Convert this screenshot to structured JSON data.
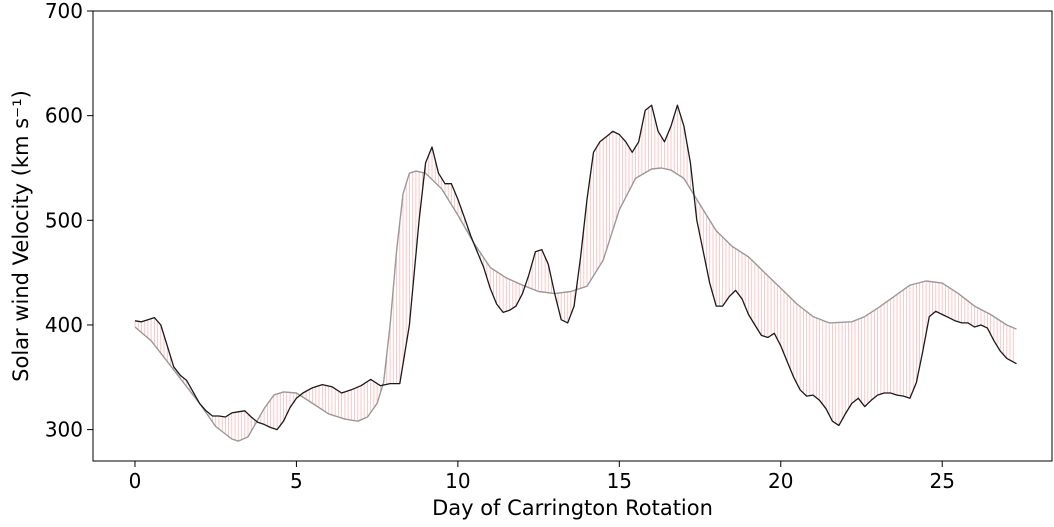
{
  "chart_data": {
    "type": "line",
    "title": "",
    "xlabel": "Day of Carrington Rotation",
    "ylabel": "Solar wind Velocity (km s⁻¹)",
    "xlim": [
      -1.3,
      28.4
    ],
    "ylim": [
      270,
      700
    ],
    "xticks": [
      0,
      5,
      10,
      15,
      20,
      25
    ],
    "yticks": [
      300,
      400,
      500,
      600,
      700
    ],
    "grid": false,
    "colors": {
      "observed": "#1a1a1a",
      "model": "#999999",
      "mapping": "#ff0000"
    },
    "series": [
      {
        "x": [
          0,
          0.2,
          0.4,
          0.6,
          0.8,
          1.0,
          1.2,
          1.4,
          1.6,
          1.8,
          2.0,
          2.2,
          2.4,
          2.6,
          2.8,
          3.0,
          3.2,
          3.4,
          3.6,
          3.8,
          4.0,
          4.2,
          4.4,
          4.6,
          4.8,
          5.0,
          5.2,
          5.5,
          5.8,
          6.1,
          6.4,
          6.7,
          7.0,
          7.3,
          7.6,
          7.9,
          8.2,
          8.5,
          8.8,
          9.0,
          9.2,
          9.4,
          9.6,
          9.8,
          10.0,
          10.2,
          10.4,
          10.6,
          10.8,
          11.0,
          11.2,
          11.4,
          11.6,
          11.8,
          12.0,
          12.2,
          12.4,
          12.6,
          12.8,
          13.0,
          13.2,
          13.4,
          13.6,
          13.8,
          14.0,
          14.2,
          14.4,
          14.6,
          14.8,
          15.0,
          15.2,
          15.4,
          15.6,
          15.8,
          16.0,
          16.2,
          16.4,
          16.6,
          16.8,
          17.0,
          17.2,
          17.4,
          17.6,
          17.8,
          18.0,
          18.2,
          18.4,
          18.6,
          18.8,
          19.0,
          19.2,
          19.4,
          19.6,
          19.8,
          20.0,
          20.2,
          20.4,
          20.6,
          20.8,
          21.0,
          21.2,
          21.4,
          21.6,
          21.8,
          22.0,
          22.2,
          22.4,
          22.6,
          22.8,
          23.0,
          23.2,
          23.4,
          23.6,
          23.8,
          24.0,
          24.2,
          24.4,
          24.6,
          24.8,
          25.0,
          25.2,
          25.4,
          25.6,
          25.8,
          26.0,
          26.2,
          26.4,
          26.6,
          26.8,
          27.0,
          27.3
        ],
        "y": [
          404,
          403,
          405,
          407,
          400,
          380,
          360,
          352,
          347,
          336,
          325,
          318,
          313,
          313,
          312,
          316,
          317,
          318,
          312,
          307,
          305,
          302,
          300,
          308,
          321,
          330,
          335,
          340,
          343,
          341,
          335,
          338,
          342,
          348,
          342,
          344,
          344,
          400,
          500,
          555,
          570,
          545,
          535,
          535,
          520,
          503,
          485,
          470,
          455,
          435,
          420,
          412,
          414,
          418,
          430,
          448,
          470,
          472,
          458,
          430,
          405,
          402,
          418,
          465,
          520,
          565,
          575,
          580,
          585,
          582,
          575,
          565,
          575,
          605,
          610,
          585,
          575,
          590,
          610,
          590,
          555,
          500,
          470,
          440,
          418,
          418,
          427,
          433,
          425,
          410,
          400,
          390,
          388,
          392,
          380,
          365,
          350,
          338,
          332,
          333,
          328,
          320,
          308,
          304,
          315,
          325,
          330,
          322,
          328,
          333,
          335,
          335,
          333,
          332,
          330,
          345,
          375,
          408,
          413,
          410,
          407,
          404,
          402,
          402,
          398,
          400,
          397,
          385,
          375,
          368,
          363
        ]
      },
      {
        "x": [
          0,
          0.5,
          1.0,
          1.5,
          2.0,
          2.5,
          3.0,
          3.2,
          3.5,
          4.0,
          4.3,
          4.6,
          5.0,
          5.5,
          6.0,
          6.5,
          6.9,
          7.2,
          7.5,
          7.7,
          7.9,
          8.1,
          8.3,
          8.5,
          8.7,
          9.0,
          9.5,
          10.0,
          10.5,
          11.0,
          11.5,
          12.0,
          12.5,
          13.0,
          13.5,
          14.0,
          14.5,
          15.0,
          15.5,
          16.0,
          16.3,
          16.6,
          17.0,
          17.5,
          18.0,
          18.5,
          19.0,
          19.5,
          20.0,
          20.5,
          21.0,
          21.5,
          22.2,
          22.6,
          23.0,
          23.5,
          24.0,
          24.5,
          25.0,
          25.5,
          26.0,
          26.5,
          27.0,
          27.3
        ],
        "y": [
          398,
          385,
          365,
          345,
          325,
          303,
          291,
          289,
          293,
          320,
          333,
          336,
          335,
          325,
          315,
          310,
          308,
          312,
          325,
          345,
          400,
          470,
          525,
          545,
          547,
          545,
          530,
          505,
          478,
          455,
          445,
          438,
          432,
          430,
          432,
          437,
          462,
          510,
          540,
          549,
          550,
          548,
          540,
          515,
          490,
          475,
          465,
          450,
          435,
          420,
          408,
          402,
          403,
          408,
          416,
          427,
          438,
          442,
          440,
          430,
          418,
          410,
          400,
          396
        ]
      }
    ]
  }
}
